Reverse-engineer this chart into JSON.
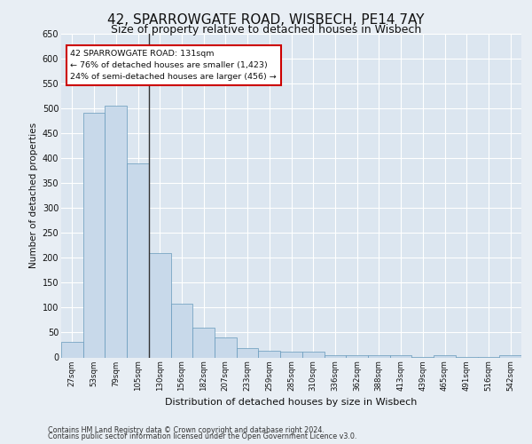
{
  "title_line1": "42, SPARROWGATE ROAD, WISBECH, PE14 7AY",
  "title_line2": "Size of property relative to detached houses in Wisbech",
  "xlabel": "Distribution of detached houses by size in Wisbech",
  "ylabel": "Number of detached properties",
  "footnote1": "Contains HM Land Registry data © Crown copyright and database right 2024.",
  "footnote2": "Contains public sector information licensed under the Open Government Licence v3.0.",
  "annotation_line1": "42 SPARROWGATE ROAD: 131sqm",
  "annotation_line2": "← 76% of detached houses are smaller (1,423)",
  "annotation_line3": "24% of semi-detached houses are larger (456) →",
  "bar_color": "#c8d9ea",
  "bar_edge_color": "#6699bb",
  "highlight_line_color": "#333333",
  "categories": [
    "27sqm",
    "53sqm",
    "79sqm",
    "105sqm",
    "130sqm",
    "156sqm",
    "182sqm",
    "207sqm",
    "233sqm",
    "259sqm",
    "285sqm",
    "310sqm",
    "336sqm",
    "362sqm",
    "388sqm",
    "413sqm",
    "439sqm",
    "465sqm",
    "491sqm",
    "516sqm",
    "542sqm"
  ],
  "values": [
    32,
    490,
    505,
    390,
    210,
    107,
    59,
    40,
    18,
    14,
    11,
    11,
    5,
    5,
    5,
    5,
    1,
    5,
    1,
    1,
    5
  ],
  "highlight_bar_index": 4,
  "ylim": [
    0,
    650
  ],
  "yticks": [
    0,
    50,
    100,
    150,
    200,
    250,
    300,
    350,
    400,
    450,
    500,
    550,
    600,
    650
  ],
  "bg_color": "#e8eef4",
  "plot_bg_color": "#dce6f0",
  "grid_color": "#ffffff",
  "title_fontsize": 11,
  "subtitle_fontsize": 9,
  "xlabel_fontsize": 8,
  "ylabel_fontsize": 7.5,
  "tick_fontsize": 7,
  "xtick_fontsize": 6.2,
  "footnote_fontsize": 5.8
}
